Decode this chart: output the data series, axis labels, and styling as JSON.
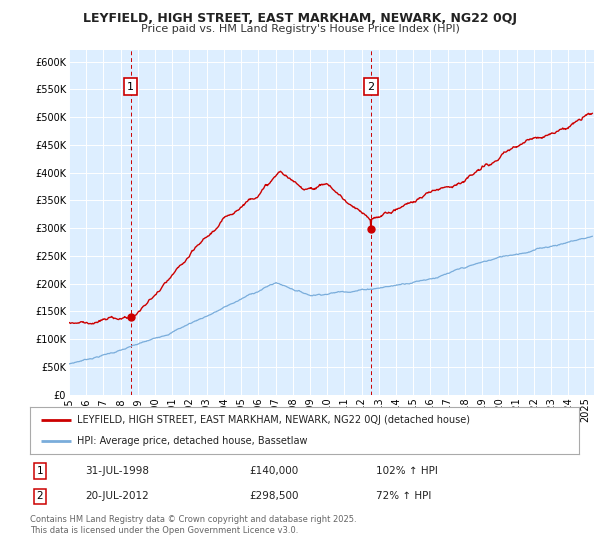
{
  "title": "LEYFIELD, HIGH STREET, EAST MARKHAM, NEWARK, NG22 0QJ",
  "subtitle": "Price paid vs. HM Land Registry's House Price Index (HPI)",
  "legend_line1": "LEYFIELD, HIGH STREET, EAST MARKHAM, NEWARK, NG22 0QJ (detached house)",
  "legend_line2": "HPI: Average price, detached house, Bassetlaw",
  "annotation1_label": "1",
  "annotation1_date": "31-JUL-1998",
  "annotation1_price": "£140,000",
  "annotation1_hpi": "102% ↑ HPI",
  "annotation1_year": 1998.58,
  "annotation1_value": 140000,
  "annotation2_label": "2",
  "annotation2_date": "20-JUL-2012",
  "annotation2_price": "£298,500",
  "annotation2_hpi": "72% ↑ HPI",
  "annotation2_year": 2012.55,
  "annotation2_value": 298500,
  "note": "Contains HM Land Registry data © Crown copyright and database right 2025.\nThis data is licensed under the Open Government Licence v3.0.",
  "red_color": "#cc0000",
  "blue_color": "#7aaddb",
  "bg_color": "#ddeeff",
  "plot_bg": "#ddeeff",
  "ylim": [
    0,
    620000
  ],
  "xlim_start": 1995,
  "xlim_end": 2025.5,
  "yticks": [
    0,
    50000,
    100000,
    150000,
    200000,
    250000,
    300000,
    350000,
    400000,
    450000,
    500000,
    550000,
    600000
  ],
  "ytick_labels": [
    "£0",
    "£50K",
    "£100K",
    "£150K",
    "£200K",
    "£250K",
    "£300K",
    "£350K",
    "£400K",
    "£450K",
    "£500K",
    "£550K",
    "£600K"
  ],
  "xtick_years": [
    1995,
    1996,
    1997,
    1998,
    1999,
    2000,
    2001,
    2002,
    2003,
    2004,
    2005,
    2006,
    2007,
    2008,
    2009,
    2010,
    2011,
    2012,
    2013,
    2014,
    2015,
    2016,
    2017,
    2018,
    2019,
    2020,
    2021,
    2022,
    2023,
    2024,
    2025
  ]
}
